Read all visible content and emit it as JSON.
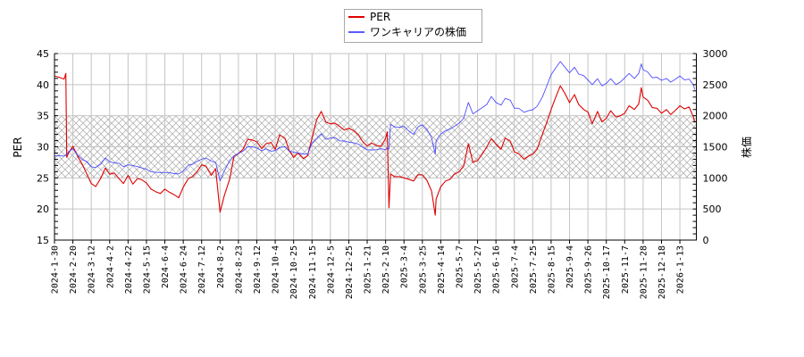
{
  "legend": {
    "items": [
      {
        "label": "PER",
        "color": "#e00000"
      },
      {
        "label": "ワンキャリアの株価",
        "color": "#5a5aff"
      }
    ]
  },
  "axes": {
    "left_label": "PER",
    "right_label": "株価"
  },
  "chart_data": {
    "type": "line",
    "title": "",
    "xlabel": "",
    "ylabel": "PER",
    "ylabel_right": "株価",
    "ylim": [
      15,
      45
    ],
    "ylim_right": [
      0,
      3000
    ],
    "yticks": [
      15,
      20,
      25,
      30,
      35,
      40,
      45
    ],
    "yticks_right": [
      0,
      500,
      1000,
      1500,
      2000,
      2500,
      3000
    ],
    "grid": true,
    "legend_position": "upper center",
    "shaded_band": {
      "axis": "left",
      "from": 25,
      "to": 35,
      "pattern": "crosshatch",
      "color": "#a8a8a8"
    },
    "xtick_labels": [
      "2024-1-30",
      "2024-2-20",
      "2024-3-12",
      "2024-4-2",
      "2024-4-22",
      "2024-5-15",
      "2024-6-4",
      "2024-6-24",
      "2024-7-12",
      "2024-8-2",
      "2024-8-23",
      "2024-9-12",
      "2024-10-4",
      "2024-10-25",
      "2024-11-15",
      "2024-12-5",
      "2024-12-25",
      "2025-1-21",
      "2025-2-10",
      "2025-3-4",
      "2025-3-25",
      "2025-4-14",
      "2025-5-7",
      "2025-5-27",
      "2025-6-16",
      "2025-7-4",
      "2025-7-25",
      "2025-8-15",
      "2025-9-4",
      "2025-9-26",
      "2025-10-17",
      "2025-11-7",
      "2025-11-28",
      "2025-12-18",
      "2026-1-13"
    ],
    "x": [
      "2024-01-30",
      "2024-02-04",
      "2024-02-10",
      "2024-02-12",
      "2024-02-13",
      "2024-02-15",
      "2024-02-20",
      "2024-02-25",
      "2024-03-02",
      "2024-03-07",
      "2024-03-12",
      "2024-03-17",
      "2024-03-23",
      "2024-03-28",
      "2024-04-02",
      "2024-04-07",
      "2024-04-12",
      "2024-04-17",
      "2024-04-22",
      "2024-04-28",
      "2024-05-04",
      "2024-05-09",
      "2024-05-15",
      "2024-05-20",
      "2024-05-25",
      "2024-05-30",
      "2024-06-04",
      "2024-06-09",
      "2024-06-14",
      "2024-06-19",
      "2024-06-24",
      "2024-06-29",
      "2024-07-03",
      "2024-07-08",
      "2024-07-12",
      "2024-07-17",
      "2024-07-23",
      "2024-07-28",
      "2024-08-02",
      "2024-08-07",
      "2024-08-13",
      "2024-08-18",
      "2024-08-23",
      "2024-08-28",
      "2024-09-02",
      "2024-09-07",
      "2024-09-12",
      "2024-09-18",
      "2024-09-23",
      "2024-09-29",
      "2024-10-04",
      "2024-10-09",
      "2024-10-15",
      "2024-10-20",
      "2024-10-25",
      "2024-10-30",
      "2024-11-05",
      "2024-11-10",
      "2024-11-15",
      "2024-11-20",
      "2024-11-25",
      "2024-11-30",
      "2024-12-05",
      "2024-12-10",
      "2024-12-15",
      "2024-12-20",
      "2024-12-25",
      "2025-01-01",
      "2025-01-08",
      "2025-01-14",
      "2025-01-21",
      "2025-01-26",
      "2025-01-31",
      "2025-02-05",
      "2025-02-10",
      "2025-02-12",
      "2025-02-14",
      "2025-02-16",
      "2025-02-21",
      "2025-02-27",
      "2025-03-04",
      "2025-03-09",
      "2025-03-15",
      "2025-03-20",
      "2025-03-25",
      "2025-03-30",
      "2025-04-04",
      "2025-04-08",
      "2025-04-09",
      "2025-04-14",
      "2025-04-20",
      "2025-04-26",
      "2025-05-01",
      "2025-05-07",
      "2025-05-12",
      "2025-05-17",
      "2025-05-22",
      "2025-05-27",
      "2025-06-01",
      "2025-06-06",
      "2025-06-11",
      "2025-06-16",
      "2025-06-21",
      "2025-06-25",
      "2025-06-30",
      "2025-07-04",
      "2025-07-09",
      "2025-07-15",
      "2025-07-20",
      "2025-07-25",
      "2025-07-30",
      "2025-08-05",
      "2025-08-10",
      "2025-08-15",
      "2025-08-20",
      "2025-08-25",
      "2025-08-30",
      "2025-09-04",
      "2025-09-10",
      "2025-09-15",
      "2025-09-21",
      "2025-09-26",
      "2025-10-01",
      "2025-10-07",
      "2025-10-12",
      "2025-10-17",
      "2025-10-22",
      "2025-10-28",
      "2025-11-02",
      "2025-11-07",
      "2025-11-12",
      "2025-11-18",
      "2025-11-23",
      "2025-11-26",
      "2025-11-28",
      "2025-12-03",
      "2025-12-08",
      "2025-12-13",
      "2025-12-18",
      "2025-12-25",
      "2025-12-31",
      "2026-01-07",
      "2026-01-13",
      "2026-01-18",
      "2026-01-23",
      "2026-01-28",
      "2026-01-29"
    ],
    "series": [
      {
        "name": "PER",
        "axis": "left",
        "color": "#e00000",
        "values": [
          41.4,
          41.2,
          40.9,
          41.8,
          28.3,
          29.0,
          30.1,
          28.6,
          27.1,
          25.6,
          24.1,
          23.6,
          25.0,
          26.6,
          25.6,
          25.8,
          24.9,
          24.1,
          25.4,
          24.0,
          24.9,
          24.7,
          24.2,
          23.2,
          22.8,
          22.5,
          23.2,
          22.7,
          22.3,
          21.8,
          23.5,
          24.9,
          25.2,
          26.1,
          27.1,
          26.9,
          25.4,
          26.5,
          19.5,
          22.2,
          24.8,
          28.5,
          28.9,
          29.6,
          31.2,
          31.1,
          30.8,
          29.7,
          30.5,
          30.7,
          29.6,
          31.9,
          31.4,
          29.4,
          28.3,
          29.0,
          28.1,
          28.6,
          31.4,
          34.3,
          35.7,
          34.0,
          33.7,
          33.8,
          33.3,
          32.7,
          33.0,
          32.6,
          31.9,
          30.9,
          30.1,
          30.6,
          30.2,
          30.1,
          31.3,
          32.4,
          20.2,
          25.6,
          25.2,
          25.2,
          25.0,
          24.8,
          24.5,
          25.5,
          25.5,
          24.6,
          22.9,
          19.0,
          21.6,
          23.6,
          24.5,
          24.8,
          25.6,
          26.0,
          26.9,
          30.5,
          27.5,
          27.8,
          28.8,
          30.0,
          31.3,
          30.4,
          29.6,
          31.4,
          30.9,
          29.2,
          28.9,
          28.0,
          28.5,
          28.8,
          29.6,
          32.0,
          33.9,
          36.0,
          38.0,
          39.8,
          38.6,
          37.1,
          38.4,
          36.8,
          36.0,
          35.6,
          33.7,
          35.7,
          34.0,
          34.6,
          35.8,
          34.8,
          35.0,
          35.4,
          36.6,
          36.0,
          36.9,
          39.5,
          38.0,
          37.5,
          36.3,
          36.2,
          35.4,
          36.0,
          35.2,
          35.9,
          36.6,
          36.1,
          36.4,
          34.7,
          34.0
        ]
      },
      {
        "name": "ワンキャリアの株価",
        "axis": "right",
        "color": "#3a3aff",
        "values": [
          1350,
          1360,
          1350,
          1370,
          1380,
          1420,
          1470,
          1370,
          1290,
          1265,
          1180,
          1165,
          1225,
          1320,
          1260,
          1240,
          1238,
          1180,
          1210,
          1200,
          1182,
          1160,
          1140,
          1100,
          1090,
          1086,
          1086,
          1085,
          1070,
          1065,
          1110,
          1206,
          1220,
          1270,
          1300,
          1320,
          1270,
          1250,
          952,
          1115,
          1280,
          1355,
          1395,
          1430,
          1500,
          1500,
          1480,
          1435,
          1470,
          1430,
          1440,
          1490,
          1500,
          1430,
          1415,
          1400,
          1385,
          1381,
          1560,
          1635,
          1710,
          1620,
          1640,
          1650,
          1595,
          1595,
          1575,
          1565,
          1545,
          1495,
          1452,
          1450,
          1452,
          1470,
          1452,
          1480,
          1465,
          1860,
          1820,
          1815,
          1830,
          1760,
          1700,
          1820,
          1855,
          1780,
          1650,
          1381,
          1600,
          1705,
          1760,
          1786,
          1830,
          1880,
          1960,
          2214,
          2030,
          2080,
          2130,
          2180,
          2310,
          2214,
          2170,
          2280,
          2250,
          2120,
          2120,
          2055,
          2080,
          2095,
          2150,
          2300,
          2476,
          2660,
          2770,
          2871,
          2780,
          2690,
          2780,
          2670,
          2645,
          2575,
          2500,
          2595,
          2480,
          2520,
          2595,
          2500,
          2540,
          2610,
          2680,
          2600,
          2680,
          2833,
          2740,
          2705,
          2610,
          2620,
          2570,
          2600,
          2540,
          2590,
          2640,
          2575,
          2590,
          2490,
          2420
        ]
      }
    ]
  }
}
